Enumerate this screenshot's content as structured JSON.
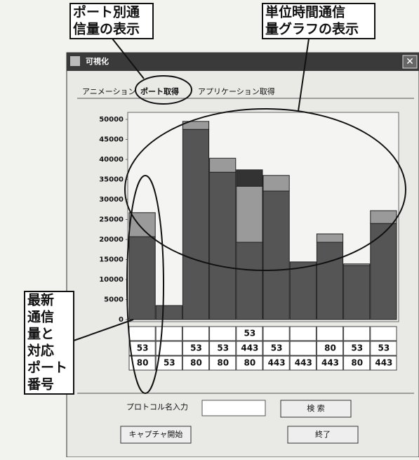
{
  "annotations": {
    "port_traffic": [
      "ポート別通",
      "信量の表示"
    ],
    "graph": [
      "単位時間通信",
      "量グラフの表示"
    ],
    "latest": [
      "最新",
      "通信",
      "量と",
      "対応",
      "ポート",
      "番号"
    ]
  },
  "window": {
    "title": "可視化",
    "tabs": [
      "アニメーション",
      "ポート取得",
      "アプリケーション取得"
    ],
    "port_table": {
      "rows": [
        [
          null,
          null,
          null,
          null,
          53,
          null,
          null,
          null,
          null,
          null
        ],
        [
          53,
          null,
          53,
          53,
          443,
          53,
          null,
          80,
          53,
          53
        ],
        [
          80,
          53,
          80,
          80,
          80,
          443,
          443,
          443,
          80,
          443
        ]
      ]
    },
    "protocol_label": "プロトコル名入力",
    "search_button": "検 索",
    "capture_button": "キャプチャ開始",
    "exit_button": "終了"
  },
  "chart_data": {
    "type": "bar",
    "stacked": true,
    "series": [
      {
        "color": "#555555",
        "values": [
          20700,
          3500,
          47500,
          36800,
          19300,
          32100,
          14400,
          19300,
          13500,
          24000
        ]
      },
      {
        "color": "#9a9a9a",
        "values": [
          6000,
          null,
          2000,
          3500,
          14000,
          3900,
          null,
          2100,
          400,
          3200
        ]
      },
      {
        "color": "#333333",
        "values": [
          null,
          null,
          null,
          null,
          4100,
          null,
          null,
          null,
          null,
          null
        ]
      }
    ],
    "ylim": [
      0,
      50000
    ],
    "yticks": [
      0,
      5000,
      10000,
      15000,
      20000,
      25000,
      30000,
      35000,
      40000,
      45000,
      50000
    ]
  }
}
